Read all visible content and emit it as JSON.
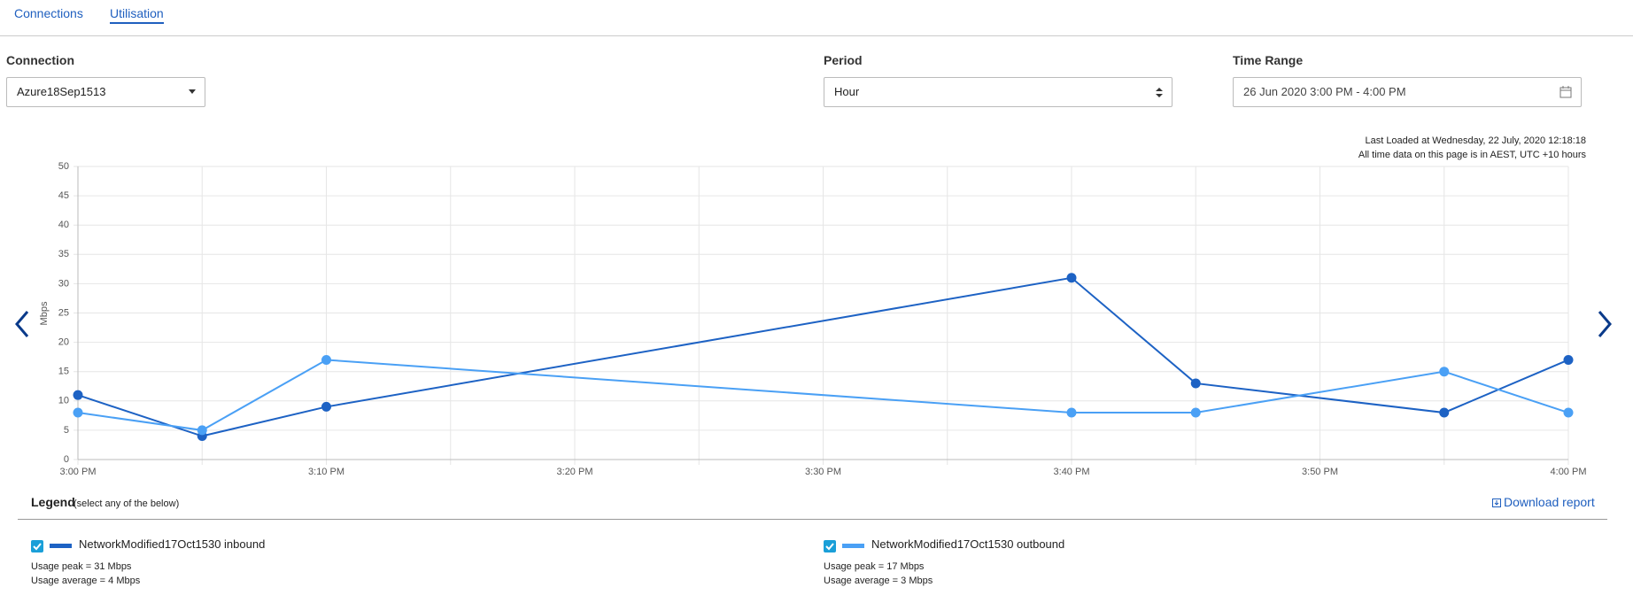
{
  "tabs": [
    "Connections",
    "Utilisation"
  ],
  "filters": {
    "connection": {
      "label": "Connection",
      "value": "Azure18Sep1513"
    },
    "period": {
      "label": "Period",
      "value": "Hour"
    },
    "time_range": {
      "label": "Time Range",
      "value": "26 Jun 2020 3:00 PM - 4:00 PM"
    }
  },
  "info": [
    "Last Loaded at Wednesday, 22 July, 2020 12:18:18",
    "All time data on this page is in AEST, UTC +10 hours"
  ],
  "legend": {
    "title": "Legend",
    "hint": "(select any of the below)",
    "download": "Download report",
    "items": [
      {
        "peak": "Usage peak = 31 Mbps",
        "average": "Usage average = 4 Mbps"
      },
      {
        "peak": "Usage peak = 17 Mbps",
        "average": "Usage average = 3 Mbps"
      }
    ]
  },
  "chart_data": {
    "type": "line",
    "y_label": "Mbps",
    "x": [
      0,
      5,
      10,
      40,
      45,
      55,
      60
    ],
    "xlim": [
      0,
      60
    ],
    "xticks": [
      {
        "value": 0,
        "label": "3:00 PM"
      },
      {
        "value": 10,
        "label": "3:10 PM"
      },
      {
        "value": 20,
        "label": "3:20 PM"
      },
      {
        "value": 30,
        "label": "3:30 PM"
      },
      {
        "value": 40,
        "label": "3:40 PM"
      },
      {
        "value": 50,
        "label": "3:50 PM"
      },
      {
        "value": 60,
        "label": "4:00 PM"
      }
    ],
    "ylim": [
      0,
      50
    ],
    "yticks": [
      0,
      5,
      10,
      15,
      20,
      25,
      30,
      35,
      40,
      45,
      50
    ],
    "grid": true,
    "series": [
      {
        "name": "NetworkModified17Oct1530 inbound",
        "color": "#1d62c4",
        "values": [
          11,
          4,
          9,
          31,
          13,
          8,
          17
        ]
      },
      {
        "name": "NetworkModified17Oct1530 outbound",
        "color": "#4aa0f5",
        "values": [
          8,
          5,
          17,
          8,
          8,
          15,
          8
        ]
      }
    ]
  }
}
